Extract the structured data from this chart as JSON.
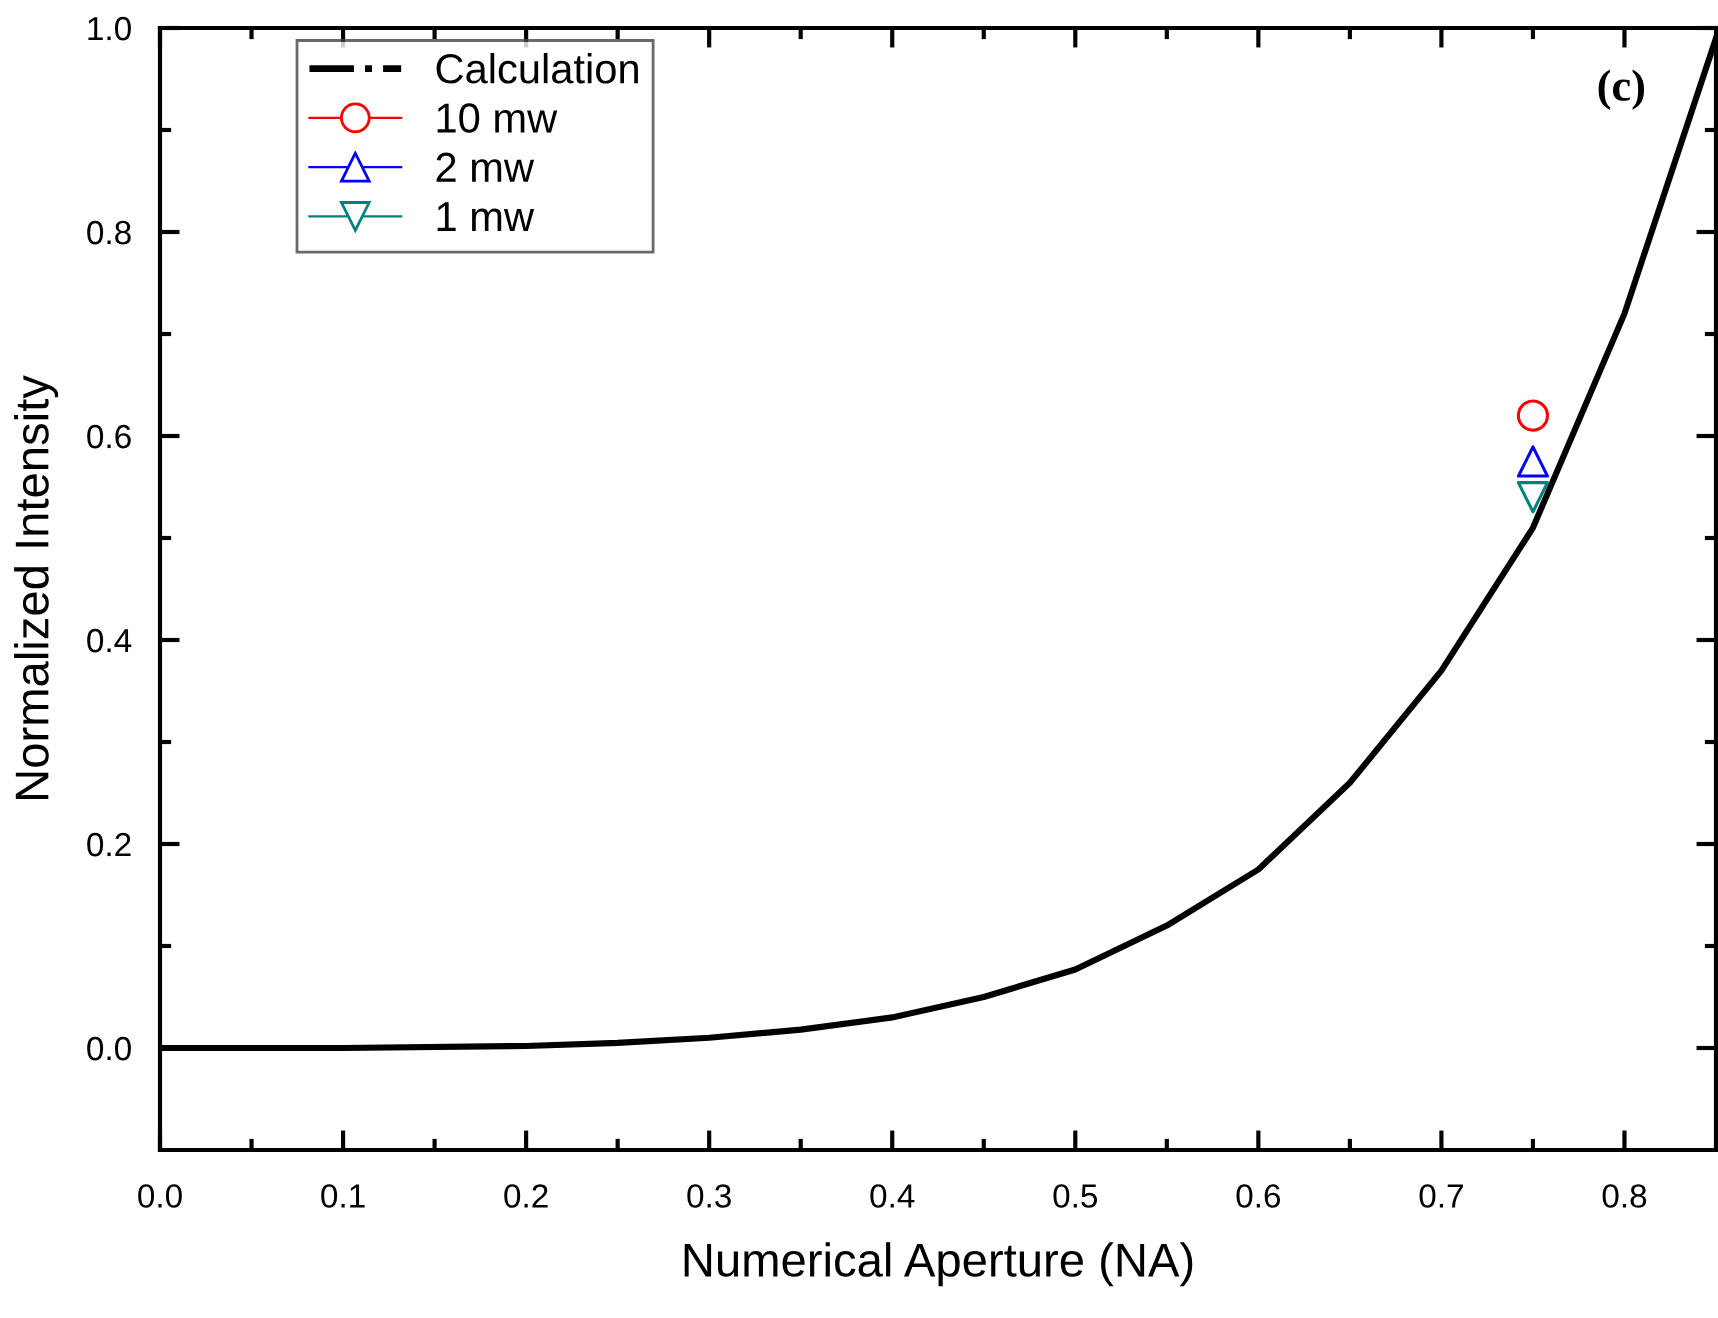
{
  "chart_data": {
    "type": "line",
    "xlabel": "Numerical Aperture (NA)",
    "ylabel": "Normalized Intensity",
    "annotations": [
      "(c)"
    ],
    "xlim": [
      0.0,
      0.85
    ],
    "xticks": [
      {
        "value": 0.0,
        "label": "0.0"
      },
      0.1,
      0.2,
      0.3,
      0.4,
      0.5,
      0.6,
      0.7,
      0.8
    ],
    "ylim": [
      -0.1,
      1.0
    ],
    "yticks": [
      {
        "value": 0.0,
        "label": "0.0"
      },
      0.2,
      0.4,
      0.6,
      0.8,
      {
        "value": 1.0,
        "label": "1.0"
      }
    ],
    "grid": false,
    "legend": "top left",
    "series": [
      {
        "name": "Calculation",
        "color": "#000000",
        "marker": "none",
        "line_style": "solid",
        "x": [
          0,
          0.1,
          0.2,
          0.25,
          0.3,
          0.35,
          0.4,
          0.45,
          0.5,
          0.55,
          0.6,
          0.65,
          0.7,
          0.75,
          0.8,
          0.85
        ],
        "values": [
          0,
          0.0,
          0.002,
          0.005,
          0.01,
          0.018,
          0.03,
          0.05,
          0.077,
          0.12,
          0.175,
          0.26,
          0.37,
          0.51,
          0.72,
          0.99
        ]
      },
      {
        "name": "10 mw",
        "type": "scatter",
        "color": "#ff0000",
        "marker": "circle",
        "x": [
          0.75
        ],
        "values": [
          0.62
        ]
      },
      {
        "name": "2 mw",
        "type": "scatter",
        "color": "#0000ff",
        "marker": "triangle",
        "x": [
          0.75
        ],
        "values": [
          0.575
        ]
      },
      {
        "name": "1 mw",
        "type": "scatter",
        "color": "#008080",
        "marker": "triangle_down",
        "x": [
          0.75
        ],
        "values": [
          0.54
        ]
      }
    ]
  }
}
